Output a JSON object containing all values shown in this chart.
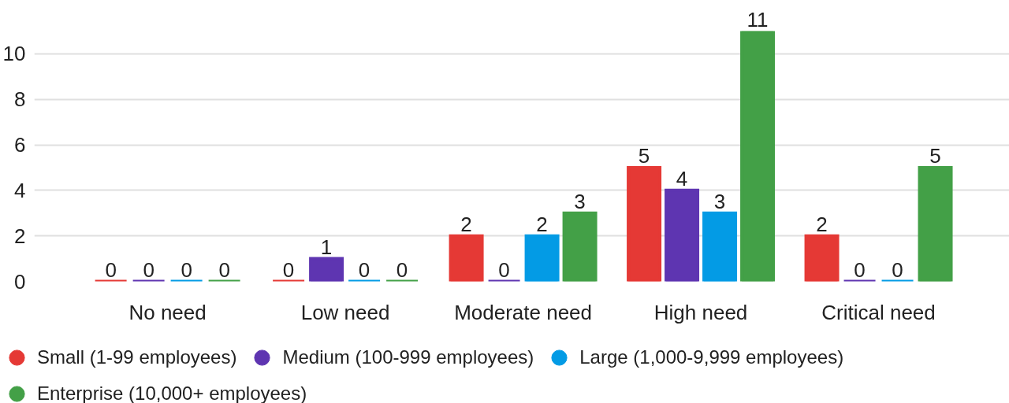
{
  "chart_data": {
    "type": "bar",
    "categories": [
      "No need",
      "Low need",
      "Moderate need",
      "High need",
      "Critical need"
    ],
    "series": [
      {
        "name": "Small (1-99 employees)",
        "color": "#e53935",
        "values": [
          0,
          0,
          2,
          5,
          2
        ]
      },
      {
        "name": "Medium (100-999 employees)",
        "color": "#5e35b1",
        "values": [
          0,
          1,
          0,
          4,
          0
        ]
      },
      {
        "name": "Large (1,000-9,999 employees)",
        "color": "#039be5",
        "values": [
          0,
          0,
          2,
          3,
          0
        ]
      },
      {
        "name": "Enterprise (10,000+ employees)",
        "color": "#43a047",
        "values": [
          0,
          0,
          3,
          11,
          5
        ]
      }
    ],
    "ylim": [
      0,
      11
    ],
    "yticks": [
      0,
      2,
      4,
      6,
      8,
      10
    ],
    "grid": "y",
    "legend": "bottom",
    "data_labels": true
  }
}
